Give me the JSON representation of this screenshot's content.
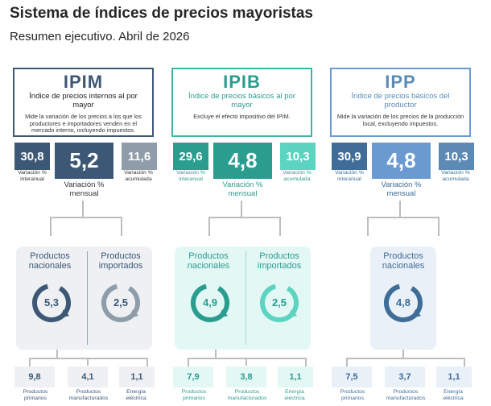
{
  "header": {
    "title": "Sistema de índices de precios mayoristas",
    "subtitle": "Resumen ejecutivo. Abril de 2026"
  },
  "colors": {
    "ipim_dark": "#3d5875",
    "ipim_mid": "#6c7e92",
    "ipim_light": "#8f9daa",
    "ipib_dark": "#2a9d8f",
    "ipib_mid": "#3fb6a4",
    "ipib_light": "#5cd4c2",
    "ipp_dark": "#3f6d98",
    "ipp_mid": "#6b9ad1",
    "ipp_light": "#5d8ab5",
    "panel_ipim": "#eef0f3",
    "panel_ipib": "#e3f7f4",
    "panel_ipp": "#eaf0f7"
  },
  "indices": [
    {
      "name": "IPIM",
      "subtitle": "Índice de precios internos al por mayor",
      "description": "Mide la variación de los precios a los que los productores e importadores venden en el mercado interno, incluyendo impuestos.",
      "interanual": "30,8",
      "mensual": "5,2",
      "acumulada": "11,6",
      "label_interanual": "Variación % interanual",
      "label_mensual": "Variación % mensual",
      "label_acumulada": "Variación % acumulada",
      "groups": [
        {
          "label": "Productos nacionales",
          "value": "5,3"
        },
        {
          "label": "Productos importados",
          "value": "2,5"
        }
      ],
      "breakdown": [
        {
          "value": "9,8",
          "label": "Productos primarios"
        },
        {
          "value": "4,1",
          "label": "Productos manufacturados"
        },
        {
          "value": "1,1",
          "label": "Energía eléctrica"
        }
      ]
    },
    {
      "name": "IPIB",
      "subtitle": "Índice de precios básicos al por mayor",
      "description": "Excluye el efecto impositivo del IPIM.",
      "interanual": "29,6",
      "mensual": "4,8",
      "acumulada": "10,3",
      "label_interanual": "Variación % interanual",
      "label_mensual": "Variación % mensual",
      "label_acumulada": "Variación % acumulada",
      "groups": [
        {
          "label": "Productos nacionales",
          "value": "4,9"
        },
        {
          "label": "Productos importados",
          "value": "2,5"
        }
      ],
      "breakdown": [
        {
          "value": "7,9",
          "label": "Productos primarios"
        },
        {
          "value": "3,8",
          "label": "Productos manufacturados"
        },
        {
          "value": "1,1",
          "label": "Energía eléctrica"
        }
      ]
    },
    {
      "name": "IPP",
      "subtitle": "Índice de precios básicos del productor",
      "description": "Mide la variación de los precios de la producción local, excluyendo impuestos.",
      "interanual": "30,9",
      "mensual": "4,8",
      "acumulada": "10,3",
      "label_interanual": "Variación % interanual",
      "label_mensual": "Variación % mensual",
      "label_acumulada": "Variación % acumulada",
      "groups": [
        {
          "label": "Productos nacionales",
          "value": "4,8"
        }
      ],
      "breakdown": [
        {
          "value": "7,5",
          "label": "Productos primarios"
        },
        {
          "value": "3,7",
          "label": "Productos manufacturados"
        },
        {
          "value": "1,1",
          "label": "Energía eléctrica"
        }
      ]
    }
  ],
  "chart_data": {
    "type": "table",
    "title": "Sistema de índices de precios mayoristas",
    "subtitle": "Resumen ejecutivo. Abril de 2026",
    "rows": [
      {
        "index": "IPIM",
        "interanual": 30.8,
        "mensual": 5.2,
        "acumulada": 11.6,
        "productos_nacionales": 5.3,
        "productos_importados": 2.5,
        "productos_primarios": 9.8,
        "productos_manufacturados": 4.1,
        "energia_electrica": 1.1
      },
      {
        "index": "IPIB",
        "interanual": 29.6,
        "mensual": 4.8,
        "acumulada": 10.3,
        "productos_nacionales": 4.9,
        "productos_importados": 2.5,
        "productos_primarios": 7.9,
        "productos_manufacturados": 3.8,
        "energia_electrica": 1.1
      },
      {
        "index": "IPP",
        "interanual": 30.9,
        "mensual": 4.8,
        "acumulada": 10.3,
        "productos_nacionales": 4.8,
        "productos_primarios": 7.5,
        "productos_manufacturados": 3.7,
        "energia_electrica": 1.1
      }
    ]
  }
}
